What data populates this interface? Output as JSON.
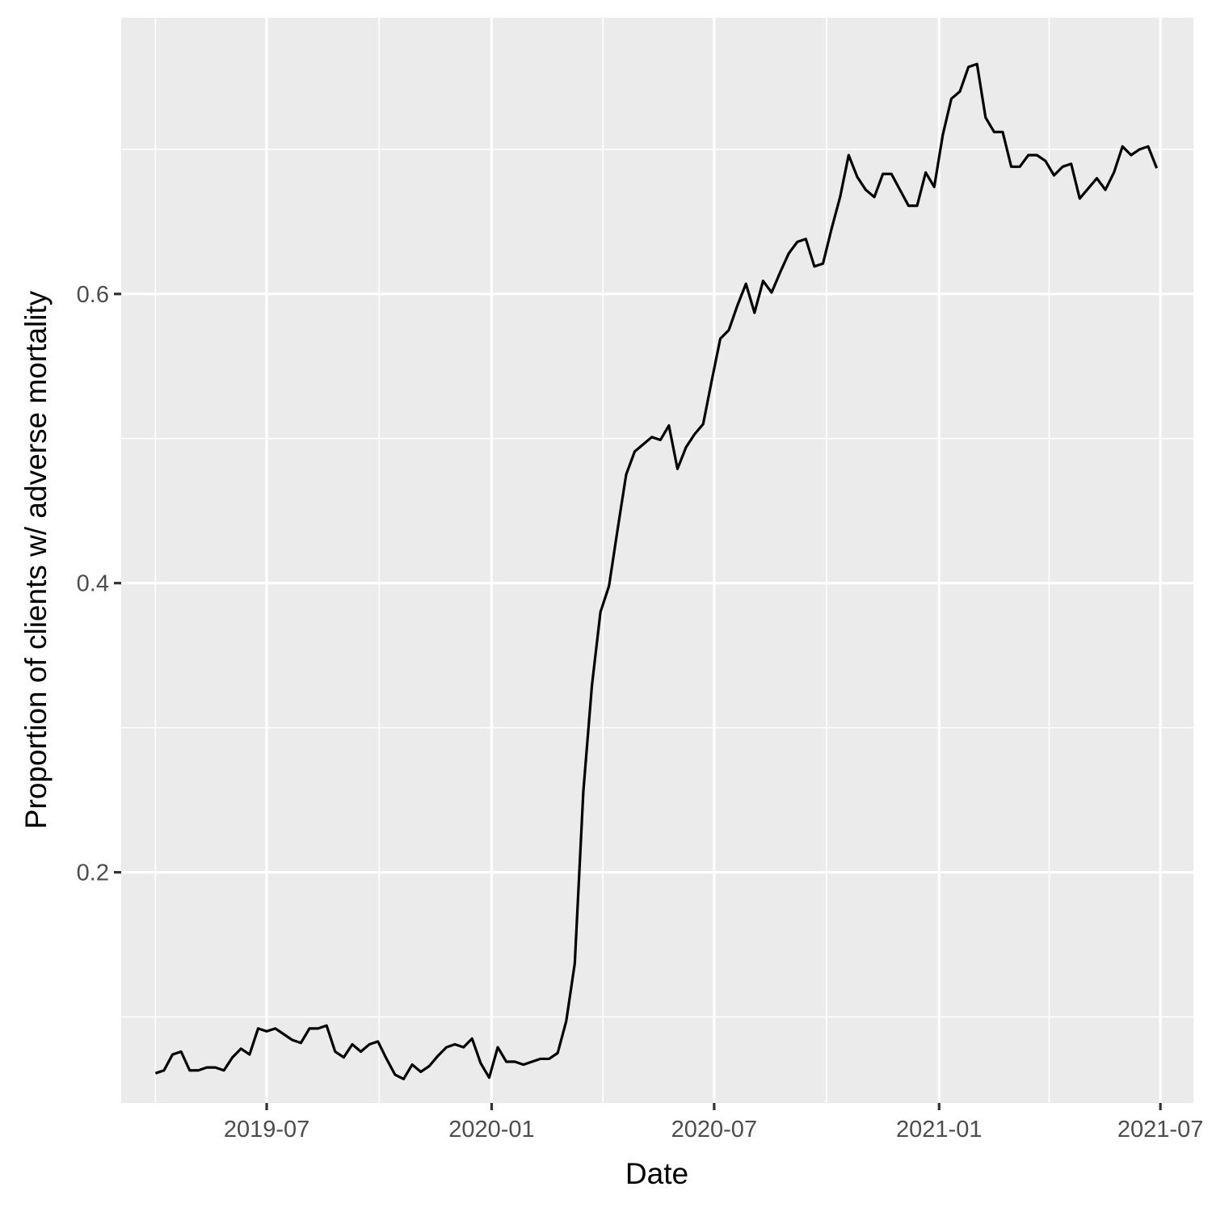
{
  "chart_data": {
    "type": "line",
    "title": "",
    "xlabel": "Date",
    "ylabel": "Proportion of clients w/ adverse mortality",
    "x_tick_labels": [
      "2019-07",
      "2020-01",
      "2020-07",
      "2021-01",
      "2021-07"
    ],
    "x_tick_dates": [
      "2019-07-01",
      "2020-01-01",
      "2020-07-01",
      "2021-01-01",
      "2021-07-01"
    ],
    "x_minor_dates": [
      "2019-04-01",
      "2019-10-01",
      "2020-04-01",
      "2020-10-01",
      "2021-04-01"
    ],
    "xlim": [
      "2019-03-04",
      "2021-07-28"
    ],
    "y_tick_labels": [
      "0.2",
      "0.4",
      "0.6"
    ],
    "y_ticks": [
      0.2,
      0.4,
      0.6
    ],
    "y_minor": [
      0.1,
      0.3,
      0.5,
      0.7
    ],
    "ylim": [
      0.0405,
      0.791
    ],
    "grid": true,
    "legend": "none",
    "colors": {
      "panel": "#ebebeb",
      "grid": "#ffffff",
      "line": "#000000",
      "tick": "#333333"
    },
    "series": [
      {
        "x": [
          "2019-04-01",
          "2019-04-08",
          "2019-04-15",
          "2019-04-22",
          "2019-04-29",
          "2019-05-06",
          "2019-05-13",
          "2019-05-20",
          "2019-05-27",
          "2019-06-03",
          "2019-06-10",
          "2019-06-17",
          "2019-06-24",
          "2019-07-01",
          "2019-07-08",
          "2019-07-15",
          "2019-07-22",
          "2019-07-29",
          "2019-08-05",
          "2019-08-12",
          "2019-08-19",
          "2019-08-26",
          "2019-09-02",
          "2019-09-09",
          "2019-09-16",
          "2019-09-23",
          "2019-09-30",
          "2019-10-07",
          "2019-10-14",
          "2019-10-21",
          "2019-10-28",
          "2019-11-04",
          "2019-11-11",
          "2019-11-18",
          "2019-11-25",
          "2019-12-02",
          "2019-12-09",
          "2019-12-16",
          "2019-12-23",
          "2019-12-30",
          "2020-01-06",
          "2020-01-13",
          "2020-01-20",
          "2020-01-27",
          "2020-02-03",
          "2020-02-10",
          "2020-02-17",
          "2020-02-24",
          "2020-03-02",
          "2020-03-09",
          "2020-03-16",
          "2020-03-23",
          "2020-03-30",
          "2020-04-06",
          "2020-04-13",
          "2020-04-20",
          "2020-04-27",
          "2020-05-04",
          "2020-05-11",
          "2020-05-18",
          "2020-05-25",
          "2020-06-01",
          "2020-06-08",
          "2020-06-15",
          "2020-06-22",
          "2020-06-29",
          "2020-07-06",
          "2020-07-13",
          "2020-07-20",
          "2020-07-27",
          "2020-08-03",
          "2020-08-10",
          "2020-08-17",
          "2020-08-24",
          "2020-08-31",
          "2020-09-07",
          "2020-09-14",
          "2020-09-21",
          "2020-09-28",
          "2020-10-05",
          "2020-10-12",
          "2020-10-19",
          "2020-10-26",
          "2020-11-02",
          "2020-11-09",
          "2020-11-16",
          "2020-11-23",
          "2020-11-30",
          "2020-12-07",
          "2020-12-14",
          "2020-12-21",
          "2020-12-28",
          "2021-01-04",
          "2021-01-11",
          "2021-01-18",
          "2021-01-25",
          "2021-02-01",
          "2021-02-08",
          "2021-02-15",
          "2021-02-22",
          "2021-03-01",
          "2021-03-08",
          "2021-03-15",
          "2021-03-22",
          "2021-03-29",
          "2021-04-05",
          "2021-04-12",
          "2021-04-19",
          "2021-04-26",
          "2021-05-03",
          "2021-05-10",
          "2021-05-17",
          "2021-05-24",
          "2021-05-31",
          "2021-06-07",
          "2021-06-14",
          "2021-06-21",
          "2021-06-28"
        ],
        "y": [
          0.061,
          0.063,
          0.074,
          0.076,
          0.063,
          0.063,
          0.065,
          0.065,
          0.063,
          0.072,
          0.078,
          0.074,
          0.092,
          0.09,
          0.092,
          0.088,
          0.084,
          0.082,
          0.092,
          0.092,
          0.094,
          0.076,
          0.072,
          0.081,
          0.076,
          0.081,
          0.083,
          0.071,
          0.06,
          0.057,
          0.067,
          0.062,
          0.066,
          0.073,
          0.079,
          0.081,
          0.079,
          0.085,
          0.068,
          0.058,
          0.079,
          0.069,
          0.069,
          0.067,
          0.069,
          0.071,
          0.071,
          0.075,
          0.097,
          0.137,
          0.256,
          0.329,
          0.38,
          0.398,
          0.437,
          0.475,
          0.491,
          0.496,
          0.501,
          0.499,
          0.509,
          0.479,
          0.494,
          0.503,
          0.51,
          0.54,
          0.569,
          0.575,
          0.592,
          0.607,
          0.587,
          0.609,
          0.601,
          0.615,
          0.628,
          0.636,
          0.638,
          0.619,
          0.621,
          0.645,
          0.667,
          0.696,
          0.681,
          0.672,
          0.667,
          0.683,
          0.683,
          0.672,
          0.661,
          0.661,
          0.684,
          0.674,
          0.71,
          0.735,
          0.74,
          0.757,
          0.759,
          0.722,
          0.712,
          0.712,
          0.688,
          0.688,
          0.696,
          0.696,
          0.692,
          0.682,
          0.688,
          0.69,
          0.666,
          0.673,
          0.68,
          0.672,
          0.684,
          0.702,
          0.696,
          0.7,
          0.702,
          0.687
        ]
      }
    ]
  }
}
